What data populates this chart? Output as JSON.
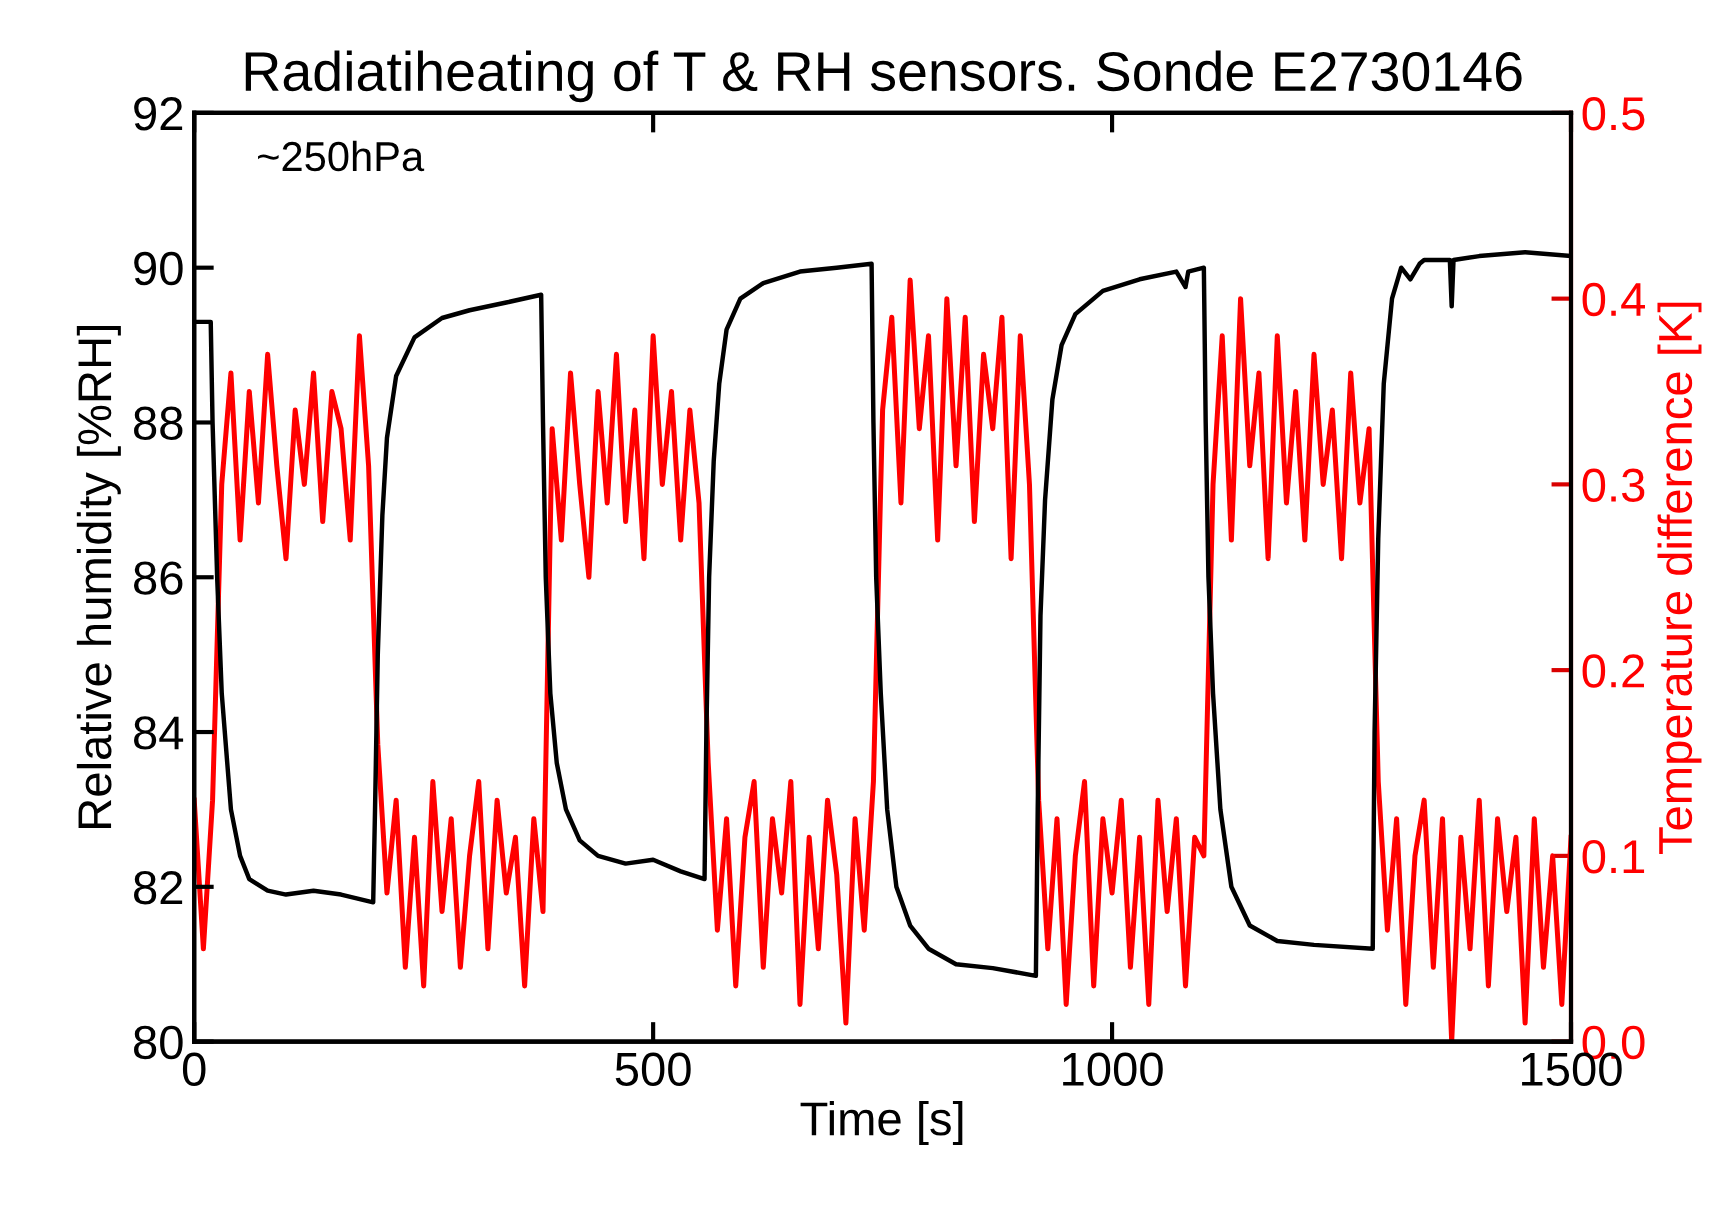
{
  "chart_data": {
    "type": "line",
    "title": "Radiatiheating of T & RH sensors. Sonde E2730146",
    "xlabel": "Time [s]",
    "ylabel": "Relative humidity [%RH]",
    "y2label": "Temperature difference [K]",
    "annotations": [
      "~250hPa"
    ],
    "xlim": [
      0,
      1500
    ],
    "xticks": [
      0,
      500,
      1000,
      1500
    ],
    "ylim": [
      80,
      92
    ],
    "yticks": [
      80,
      82,
      84,
      86,
      88,
      90,
      92
    ],
    "y2lim": [
      0,
      0.5
    ],
    "y2ticks": [
      {
        "value": 0,
        "label": "0.0"
      },
      0.1,
      0.2,
      0.3,
      0.4,
      0.5
    ],
    "grid": false,
    "legend": false,
    "marker": "none",
    "line_style": "solid",
    "series": [
      {
        "color": "#000000",
        "x": [
          0,
          18,
          20,
          25,
          30,
          40,
          50,
          60,
          80,
          100,
          130,
          160,
          195,
          197,
          200,
          205,
          210,
          220,
          240,
          270,
          300,
          340,
          378,
          380,
          383,
          388,
          395,
          405,
          420,
          440,
          470,
          500,
          530,
          556,
          558,
          561,
          566,
          572,
          580,
          595,
          620,
          660,
          700,
          738,
          740,
          743,
          748,
          755,
          765,
          780,
          800,
          830,
          870,
          917,
          919,
          922,
          927,
          935,
          945,
          960,
          990,
          1030,
          1070,
          1080,
          1083,
          1100,
          1102,
          1105,
          1110,
          1118,
          1130,
          1150,
          1180,
          1220,
          1284,
          1286,
          1290,
          1296,
          1305,
          1315,
          1325,
          1335,
          1340,
          1350,
          1368,
          1370,
          1372,
          1400,
          1450,
          1500
        ],
        "values": [
          89.3,
          89.3,
          88,
          86,
          84.5,
          83,
          82.4,
          82.1,
          81.95,
          81.9,
          81.95,
          81.9,
          81.8,
          83,
          85,
          86.8,
          87.8,
          88.6,
          89.1,
          89.35,
          89.45,
          89.55,
          89.65,
          88,
          86,
          84.5,
          83.6,
          83,
          82.6,
          82.4,
          82.3,
          82.35,
          82.2,
          82.1,
          84,
          86,
          87.5,
          88.5,
          89.2,
          89.6,
          89.8,
          89.95,
          90.0,
          90.05,
          88,
          86,
          84.5,
          83,
          82,
          81.5,
          81.2,
          81.0,
          80.95,
          80.85,
          83,
          85.5,
          87,
          88.3,
          89,
          89.4,
          89.7,
          89.85,
          89.95,
          89.75,
          89.95,
          90.0,
          88,
          86,
          84.5,
          83,
          82,
          81.5,
          81.3,
          81.25,
          81.2,
          84,
          86.5,
          88.5,
          89.6,
          90.0,
          89.85,
          90.05,
          90.1,
          90.1,
          90.1,
          89.5,
          90.1,
          90.15,
          90.2,
          90.15
        ]
      },
      {
        "color": "#ff0000",
        "axis": "y2",
        "x": [
          0,
          10,
          20,
          30,
          40,
          50,
          60,
          70,
          80,
          90,
          100,
          110,
          120,
          130,
          140,
          150,
          160,
          170,
          180,
          190,
          200,
          210,
          220,
          230,
          240,
          250,
          260,
          270,
          280,
          290,
          300,
          310,
          320,
          330,
          340,
          350,
          360,
          370,
          380,
          390,
          400,
          410,
          420,
          430,
          440,
          450,
          460,
          470,
          480,
          490,
          500,
          510,
          520,
          530,
          540,
          550,
          560,
          570,
          580,
          590,
          600,
          610,
          620,
          630,
          640,
          650,
          660,
          670,
          680,
          690,
          700,
          710,
          720,
          730,
          740,
          750,
          760,
          770,
          780,
          790,
          800,
          810,
          820,
          830,
          840,
          850,
          860,
          870,
          880,
          890,
          900,
          910,
          920,
          930,
          940,
          950,
          960,
          970,
          980,
          990,
          1000,
          1010,
          1020,
          1030,
          1040,
          1050,
          1060,
          1070,
          1080,
          1090,
          1100,
          1110,
          1120,
          1130,
          1140,
          1150,
          1160,
          1170,
          1180,
          1190,
          1200,
          1210,
          1220,
          1230,
          1240,
          1250,
          1260,
          1270,
          1280,
          1290,
          1300,
          1310,
          1320,
          1330,
          1340,
          1350,
          1360,
          1370,
          1380,
          1390,
          1400,
          1410,
          1420,
          1430,
          1440,
          1450,
          1460,
          1470,
          1480,
          1490,
          1500
        ],
        "values": [
          0.13,
          0.05,
          0.13,
          0.3,
          0.36,
          0.27,
          0.35,
          0.29,
          0.37,
          0.31,
          0.26,
          0.34,
          0.3,
          0.36,
          0.28,
          0.35,
          0.33,
          0.27,
          0.38,
          0.31,
          0.16,
          0.08,
          0.13,
          0.04,
          0.11,
          0.03,
          0.14,
          0.07,
          0.12,
          0.04,
          0.1,
          0.14,
          0.05,
          0.13,
          0.08,
          0.11,
          0.03,
          0.12,
          0.07,
          0.33,
          0.27,
          0.36,
          0.3,
          0.25,
          0.35,
          0.29,
          0.37,
          0.28,
          0.34,
          0.26,
          0.38,
          0.3,
          0.35,
          0.27,
          0.34,
          0.29,
          0.15,
          0.06,
          0.12,
          0.03,
          0.11,
          0.14,
          0.04,
          0.12,
          0.08,
          0.14,
          0.02,
          0.11,
          0.05,
          0.13,
          0.09,
          0.01,
          0.12,
          0.06,
          0.14,
          0.34,
          0.39,
          0.29,
          0.41,
          0.33,
          0.38,
          0.27,
          0.4,
          0.31,
          0.39,
          0.28,
          0.37,
          0.33,
          0.39,
          0.26,
          0.38,
          0.3,
          0.13,
          0.05,
          0.12,
          0.02,
          0.1,
          0.14,
          0.03,
          0.12,
          0.08,
          0.13,
          0.04,
          0.11,
          0.02,
          0.13,
          0.07,
          0.12,
          0.03,
          0.11,
          0.1,
          0.3,
          0.38,
          0.27,
          0.4,
          0.31,
          0.36,
          0.26,
          0.38,
          0.29,
          0.35,
          0.27,
          0.37,
          0.3,
          0.34,
          0.26,
          0.36,
          0.29,
          0.33,
          0.14,
          0.06,
          0.12,
          0.02,
          0.1,
          0.13,
          0.04,
          0.12,
          0.0,
          0.11,
          0.05,
          0.13,
          0.03,
          0.12,
          0.07,
          0.11,
          0.01,
          0.12,
          0.04,
          0.1,
          0.02,
          0.11
        ]
      }
    ]
  }
}
